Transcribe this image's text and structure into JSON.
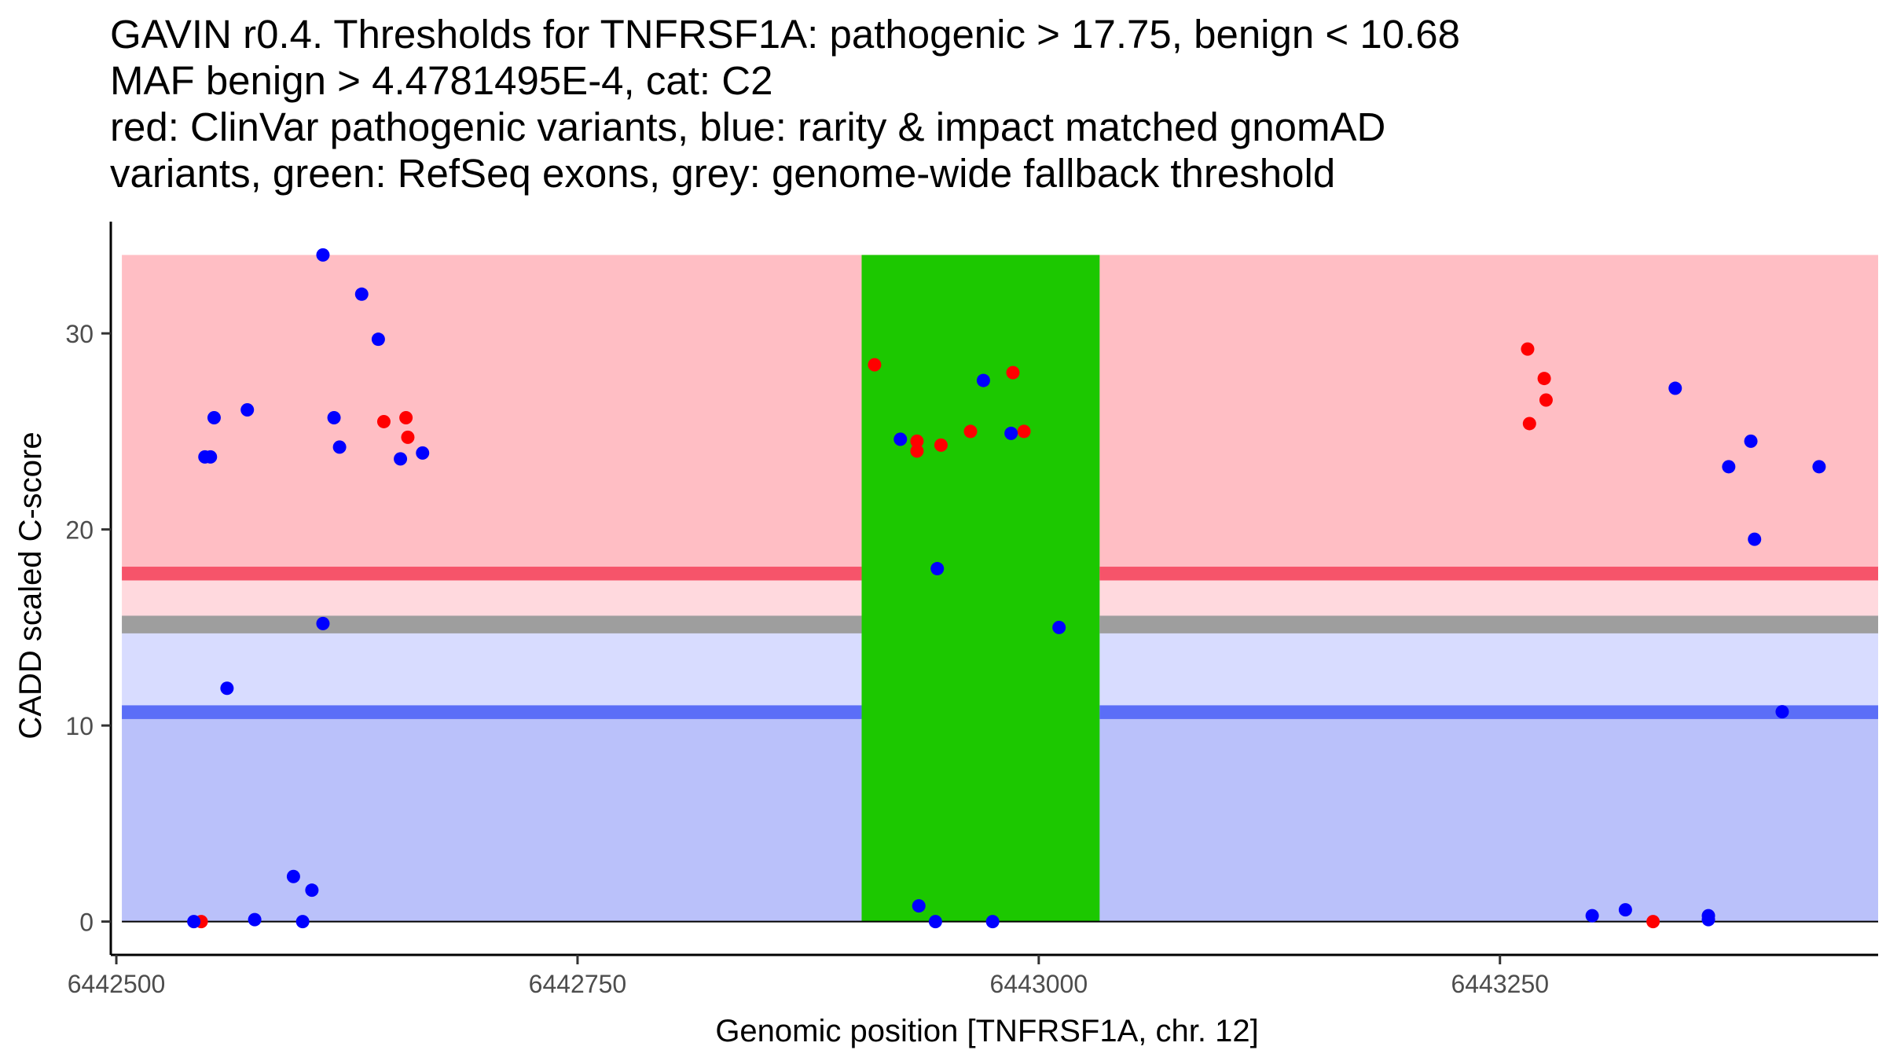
{
  "title_lines": [
    "GAVIN r0.4. Thresholds for TNFRSF1A: pathogenic > 17.75, benign < 10.68",
    "MAF benign > 4.4781495E-4, cat: C2",
    "red: ClinVar pathogenic variants, blue: rarity & impact matched gnomAD",
    "variants, green: RefSeq exons, grey: genome-wide fallback threshold"
  ],
  "colors": {
    "pathogenic_region": "#FFBEC4",
    "pathogenic_line": "#F6546A",
    "mid_region": "#FFD9DE",
    "benign_mid_region": "#D8DCFF",
    "benign_region": "#BAC1FA",
    "benign_line": "#5B6EF7",
    "fallback_line": "#9E9E9E",
    "exon": "#1CC800",
    "clinvar_point": "#FF0000",
    "gnomad_point": "#0000FF"
  },
  "chart_data": {
    "type": "scatter",
    "title": "GAVIN r0.4. Thresholds for TNFRSF1A: pathogenic > 17.75, benign < 10.68",
    "xlabel": "Genomic position [TNFRSF1A, chr. 12]",
    "ylabel": "CADD scaled C-score",
    "xlim": [
      6442497,
      6443455
    ],
    "ylim": [
      -1.7,
      35.7
    ],
    "x_ticks": [
      6442500,
      6442750,
      6443000,
      6443250
    ],
    "x_tick_labels": [
      "6442500",
      "6442750",
      "6443000",
      "6443250"
    ],
    "y_ticks": [
      0,
      10,
      20,
      30
    ],
    "y_tick_labels": [
      "0",
      "10",
      "20",
      "30"
    ],
    "thresholds": {
      "pathogenic": 17.75,
      "benign": 10.68,
      "fallback": 15.15,
      "fallback_band": [
        14.7,
        15.6
      ]
    },
    "region_bands": [
      {
        "name": "pathogenic",
        "from": 17.75,
        "to": 34
      },
      {
        "name": "intermediate",
        "from": 15.15,
        "to": 17.75
      },
      {
        "name": "benign-mid",
        "from": 10.68,
        "to": 15.15
      },
      {
        "name": "benign",
        "from": 0,
        "to": 10.68
      }
    ],
    "exons": [
      {
        "start": 6442904,
        "end": 6443033
      }
    ],
    "series": [
      {
        "name": "ClinVar pathogenic variants",
        "color": "#FF0000",
        "points": [
          {
            "x": 6442546,
            "y": 0
          },
          {
            "x": 6442645,
            "y": 25.5
          },
          {
            "x": 6442657,
            "y": 25.7
          },
          {
            "x": 6442658,
            "y": 24.7
          },
          {
            "x": 6442911,
            "y": 28.4
          },
          {
            "x": 6442934,
            "y": 24.5
          },
          {
            "x": 6442934,
            "y": 24.0
          },
          {
            "x": 6442947,
            "y": 24.3
          },
          {
            "x": 6442963,
            "y": 25.0
          },
          {
            "x": 6442986,
            "y": 28.0
          },
          {
            "x": 6442992,
            "y": 25.0
          },
          {
            "x": 6443265,
            "y": 29.2
          },
          {
            "x": 6443266,
            "y": 25.4
          },
          {
            "x": 6443274,
            "y": 27.7
          },
          {
            "x": 6443275,
            "y": 26.6
          },
          {
            "x": 6443333,
            "y": 0
          }
        ]
      },
      {
        "name": "rarity & impact matched gnomAD variants",
        "color": "#0000FF",
        "points": [
          {
            "x": 6442542,
            "y": 0
          },
          {
            "x": 6442548,
            "y": 23.7
          },
          {
            "x": 6442551,
            "y": 23.7
          },
          {
            "x": 6442553,
            "y": 25.7
          },
          {
            "x": 6442560,
            "y": 11.9
          },
          {
            "x": 6442571,
            "y": 26.1
          },
          {
            "x": 6442575,
            "y": 0.1
          },
          {
            "x": 6442596,
            "y": 2.3
          },
          {
            "x": 6442601,
            "y": 0
          },
          {
            "x": 6442606,
            "y": 1.6
          },
          {
            "x": 6442612,
            "y": 15.2
          },
          {
            "x": 6442612,
            "y": 34.0
          },
          {
            "x": 6442618,
            "y": 25.7
          },
          {
            "x": 6442621,
            "y": 24.2
          },
          {
            "x": 6442633,
            "y": 32.0
          },
          {
            "x": 6442642,
            "y": 29.7
          },
          {
            "x": 6442654,
            "y": 23.6
          },
          {
            "x": 6442666,
            "y": 23.9
          },
          {
            "x": 6442925,
            "y": 24.6
          },
          {
            "x": 6442935,
            "y": 0.8
          },
          {
            "x": 6442944,
            "y": 0
          },
          {
            "x": 6442945,
            "y": 18.0
          },
          {
            "x": 6442970,
            "y": 27.6
          },
          {
            "x": 6442975,
            "y": 0
          },
          {
            "x": 6442985,
            "y": 24.9
          },
          {
            "x": 6443011,
            "y": 15.0
          },
          {
            "x": 6443300,
            "y": 0.3
          },
          {
            "x": 6443318,
            "y": 0.6
          },
          {
            "x": 6443345,
            "y": 27.2
          },
          {
            "x": 6443363,
            "y": 0.3
          },
          {
            "x": 6443363,
            "y": 0.1
          },
          {
            "x": 6443374,
            "y": 23.2
          },
          {
            "x": 6443386,
            "y": 24.5
          },
          {
            "x": 6443388,
            "y": 19.5
          },
          {
            "x": 6443403,
            "y": 10.7
          },
          {
            "x": 6443423,
            "y": 23.2
          }
        ]
      }
    ]
  }
}
